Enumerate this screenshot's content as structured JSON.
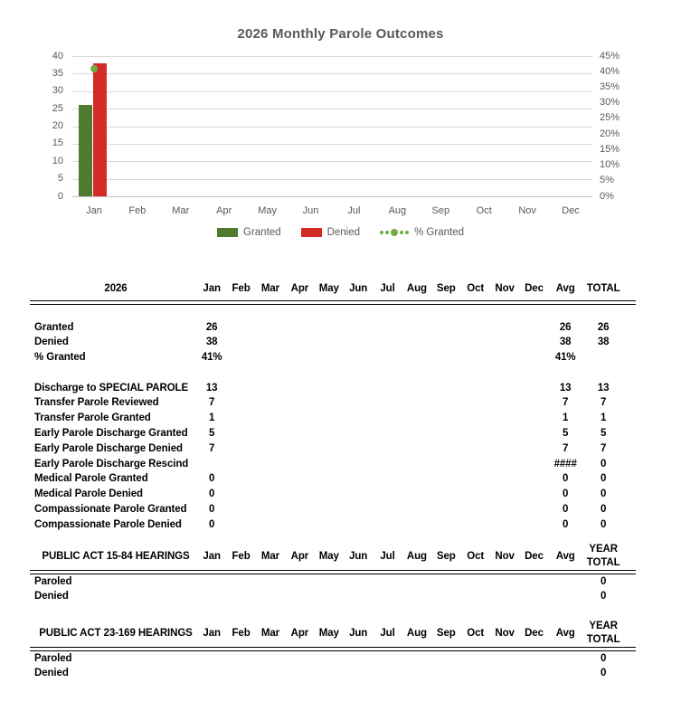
{
  "chart_data": {
    "type": "bar",
    "title": "2026 Monthly Parole Outcomes",
    "categories": [
      "Jan",
      "Feb",
      "Mar",
      "Apr",
      "May",
      "Jun",
      "Jul",
      "Aug",
      "Sep",
      "Oct",
      "Nov",
      "Dec"
    ],
    "series": [
      {
        "name": "Granted",
        "type": "bar",
        "axis": "left",
        "color": "#4e7b30",
        "values": [
          26,
          null,
          null,
          null,
          null,
          null,
          null,
          null,
          null,
          null,
          null,
          null
        ]
      },
      {
        "name": "Denied",
        "type": "bar",
        "axis": "left",
        "color": "#d52b27",
        "values": [
          38,
          null,
          null,
          null,
          null,
          null,
          null,
          null,
          null,
          null,
          null,
          null
        ]
      },
      {
        "name": "% Granted",
        "type": "scatter",
        "axis": "right",
        "color": "#70ad47",
        "values": [
          41,
          null,
          null,
          null,
          null,
          null,
          null,
          null,
          null,
          null,
          null,
          null
        ]
      }
    ],
    "left_axis": {
      "min": 0,
      "max": 40,
      "step": 5,
      "ticks": [
        "40",
        "35",
        "30",
        "25",
        "20",
        "15",
        "10",
        "5",
        "0"
      ]
    },
    "right_axis": {
      "min": 0,
      "max": 45,
      "step": 5,
      "ticks": [
        "45%",
        "40%",
        "35%",
        "30%",
        "25%",
        "20%",
        "15%",
        "10%",
        "5%",
        "0%"
      ],
      "format": "percent"
    },
    "grid": true,
    "legend_position": "bottom",
    "colors": {
      "grid": "#d9d9d9",
      "axis_text": "#595959"
    }
  },
  "tables": {
    "main": {
      "title": "2026",
      "months": [
        "Jan",
        "Feb",
        "Mar",
        "Apr",
        "May",
        "Jun",
        "Jul",
        "Aug",
        "Sep",
        "Oct",
        "Nov",
        "Dec"
      ],
      "avg_label": "Avg",
      "total_label": "TOTAL",
      "rows": [
        {
          "label": "Granted",
          "Jan": "26",
          "Avg": "26",
          "Total": "26"
        },
        {
          "label": "Denied",
          "Jan": "38",
          "Avg": "38",
          "Total": "38"
        },
        {
          "label": "% Granted",
          "Jan": "41%",
          "Avg": "41%",
          "Total": ""
        },
        {
          "label": "",
          "Jan": "",
          "Avg": "",
          "Total": ""
        },
        {
          "label": "Discharge to SPECIAL PAROLE",
          "Jan": "13",
          "Avg": "13",
          "Total": "13"
        },
        {
          "label": "Transfer Parole Reviewed",
          "Jan": "7",
          "Avg": "7",
          "Total": "7"
        },
        {
          "label": "Transfer Parole Granted",
          "Jan": "1",
          "Avg": "1",
          "Total": "1"
        },
        {
          "label": "Early Parole Discharge Granted",
          "Jan": "5",
          "Avg": "5",
          "Total": "5"
        },
        {
          "label": "Early Parole Discharge Denied",
          "Jan": "7",
          "Avg": "7",
          "Total": "7"
        },
        {
          "label": "Early Parole Discharge Rescind",
          "Jan": "",
          "Avg": "####",
          "Total": "0"
        },
        {
          "label": "Medical Parole Granted",
          "Jan": "0",
          "Avg": "0",
          "Total": "0"
        },
        {
          "label": "Medical Parole Denied",
          "Jan": "0",
          "Avg": "0",
          "Total": "0"
        },
        {
          "label": "Compassionate Parole Granted",
          "Jan": "0",
          "Avg": "0",
          "Total": "0"
        },
        {
          "label": "Compassionate Parole Denied",
          "Jan": "0",
          "Avg": "0",
          "Total": "0"
        }
      ]
    },
    "pa_15_84": {
      "title": "PUBLIC ACT 15-84 HEARINGS",
      "months": [
        "Jan",
        "Feb",
        "Mar",
        "Apr",
        "May",
        "Jun",
        "Jul",
        "Aug",
        "Sep",
        "Oct",
        "Nov",
        "Dec"
      ],
      "avg_label": "Avg",
      "total_label": "YEAR TOTAL",
      "rows": [
        {
          "label": "Paroled",
          "Total": "0"
        },
        {
          "label": "Denied",
          "Total": "0"
        }
      ]
    },
    "pa_23_169": {
      "title": "PUBLIC ACT 23-169 HEARINGS",
      "months": [
        "Jan",
        "Feb",
        "Mar",
        "Apr",
        "May",
        "Jun",
        "Jul",
        "Aug",
        "Sep",
        "Oct",
        "Nov",
        "Dec"
      ],
      "avg_label": "Avg",
      "total_label": "YEAR TOTAL",
      "rows": [
        {
          "label": "Paroled",
          "Total": "0"
        },
        {
          "label": "Denied",
          "Total": "0"
        }
      ]
    }
  }
}
